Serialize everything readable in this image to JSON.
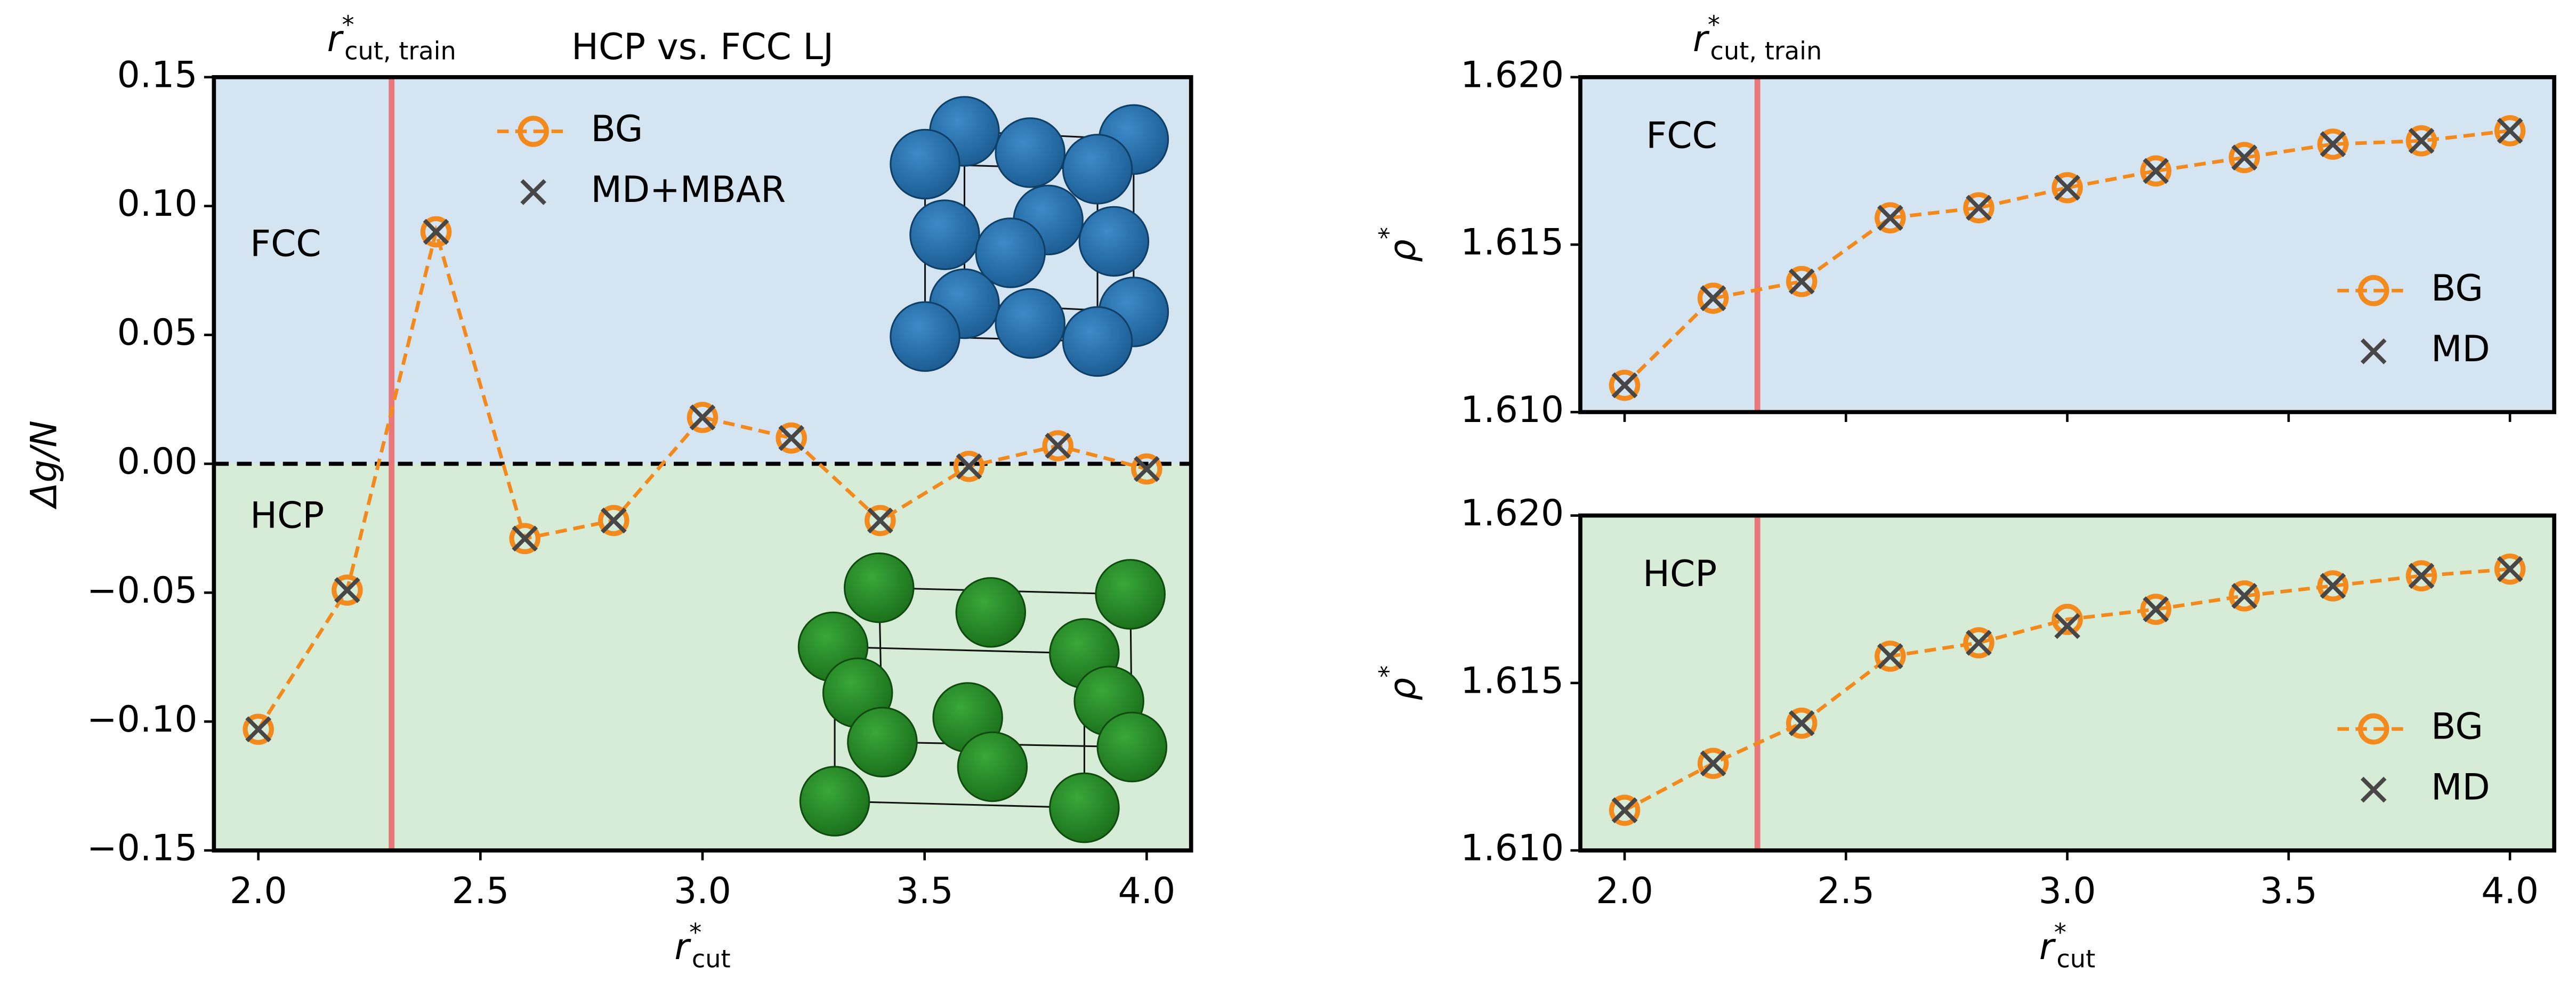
{
  "chart_data": [
    {
      "type": "line",
      "title": "HCP vs. FCC LJ",
      "xlabel": {
        "symbol": "r",
        "superscript": "*",
        "subscript": "cut"
      },
      "ylabel": "Δg/N",
      "x": [
        2.0,
        2.2,
        2.4,
        2.6,
        2.8,
        3.0,
        3.2,
        3.4,
        3.6,
        3.8,
        4.0
      ],
      "series": [
        {
          "name": "BG",
          "color": "#f28a1e",
          "marker": "open-circle",
          "line": "dashed",
          "values": [
            -0.103,
            -0.049,
            0.09,
            -0.029,
            -0.022,
            0.018,
            0.01,
            -0.022,
            -0.001,
            0.007,
            -0.002
          ]
        },
        {
          "name": "MD+MBAR",
          "color": "#474747",
          "marker": "x",
          "line": "none",
          "values": [
            -0.103,
            -0.049,
            0.09,
            -0.029,
            -0.022,
            0.018,
            0.01,
            -0.022,
            -0.001,
            0.007,
            -0.002
          ]
        }
      ],
      "xlim": [
        1.9,
        4.1
      ],
      "ylim": [
        -0.15,
        0.15
      ],
      "xticks": [
        {
          "value": 2,
          "label": "2.0"
        },
        {
          "value": 2.5,
          "label": "2.5"
        },
        {
          "value": 3,
          "label": "3.0"
        },
        {
          "value": 3.5,
          "label": "3.5"
        },
        {
          "value": 4,
          "label": "4.0"
        }
      ],
      "yticks": [
        {
          "value": -0.15,
          "label": "−0.15"
        },
        {
          "value": -0.1,
          "label": "−0.10"
        },
        {
          "value": -0.05,
          "label": "−0.05"
        },
        {
          "value": 0,
          "label": "0.00"
        },
        {
          "value": 0.05,
          "label": "0.05"
        },
        {
          "value": 0.1,
          "label": "0.10"
        },
        {
          "value": 0.15,
          "label": "0.15"
        }
      ],
      "regions": [
        {
          "label": "FCC",
          "color": "#d4e4f1",
          "ymin": 0,
          "ymax": 0.15
        },
        {
          "label": "HCP",
          "color": "#d6ecd6",
          "ymin": -0.15,
          "ymax": 0
        }
      ],
      "hline": 0,
      "vline": {
        "x": 2.3,
        "color": "#e8777a",
        "label": {
          "symbol": "r",
          "superscript": "*",
          "subscript": "cut, train"
        }
      },
      "legend": "upper center"
    },
    {
      "type": "line",
      "ylabel": {
        "symbol": "ρ",
        "superscript": "*"
      },
      "x": [
        2.0,
        2.2,
        2.4,
        2.6,
        2.8,
        3.0,
        3.2,
        3.4,
        3.6,
        3.8,
        4.0
      ],
      "series": [
        {
          "name": "BG",
          "color": "#f28a1e",
          "marker": "open-circle",
          "line": "dashed",
          "values": [
            1.6108,
            1.6134,
            1.6139,
            1.6158,
            1.6161,
            1.6167,
            1.6172,
            1.6176,
            1.618,
            1.6181,
            1.6184
          ]
        },
        {
          "name": "MD",
          "color": "#474747",
          "marker": "x",
          "line": "none",
          "values": [
            1.6108,
            1.6134,
            1.6139,
            1.6158,
            1.6161,
            1.6167,
            1.6172,
            1.6176,
            1.618,
            1.6181,
            1.6184
          ]
        }
      ],
      "xlim": [
        1.9,
        4.1
      ],
      "ylim": [
        1.61,
        1.62
      ],
      "xticks": [
        2,
        2.5,
        3,
        3.5,
        4
      ],
      "xticklabels": false,
      "yticks": [
        {
          "value": 1.61,
          "label": "1.610"
        },
        1.615,
        {
          "value": 1.62,
          "label": "1.620"
        }
      ],
      "regions": [
        {
          "label": "FCC",
          "color": "#d4e4f1",
          "ymin": 1.61,
          "ymax": 1.62
        }
      ],
      "vline": {
        "x": 2.3,
        "color": "#e8777a",
        "label": {
          "symbol": "r",
          "superscript": "*",
          "subscript": "cut, train"
        }
      },
      "legend": "lower right"
    },
    {
      "type": "line",
      "xlabel": {
        "symbol": "r",
        "superscript": "*",
        "subscript": "cut"
      },
      "ylabel": {
        "symbol": "ρ",
        "superscript": "*"
      },
      "x": [
        2.0,
        2.2,
        2.4,
        2.6,
        2.8,
        3.0,
        3.2,
        3.4,
        3.6,
        3.8,
        4.0
      ],
      "series": [
        {
          "name": "BG",
          "color": "#f28a1e",
          "marker": "open-circle",
          "line": "dashed",
          "values": [
            1.6112,
            1.6126,
            1.6138,
            1.6158,
            1.6162,
            1.6169,
            1.6172,
            1.6176,
            1.6179,
            1.6182,
            1.6184
          ]
        },
        {
          "name": "MD",
          "color": "#474747",
          "marker": "x",
          "line": "none",
          "values": [
            1.6112,
            1.6126,
            1.6138,
            1.6158,
            1.6162,
            1.6167,
            1.6172,
            1.6176,
            1.6179,
            1.6182,
            1.6184
          ]
        }
      ],
      "xlim": [
        1.9,
        4.1
      ],
      "ylim": [
        1.61,
        1.62
      ],
      "xticks": [
        {
          "value": 2,
          "label": "2.0"
        },
        {
          "value": 2.5,
          "label": "2.5"
        },
        {
          "value": 3,
          "label": "3.0"
        },
        {
          "value": 3.5,
          "label": "3.5"
        },
        {
          "value": 4,
          "label": "4.0"
        }
      ],
      "yticks": [
        {
          "value": 1.61,
          "label": "1.610"
        },
        1.615,
        {
          "value": 1.62,
          "label": "1.620"
        }
      ],
      "regions": [
        {
          "label": "HCP",
          "color": "#d6ecd6",
          "ymin": 1.61,
          "ymax": 1.62
        }
      ],
      "vline": {
        "x": 2.3,
        "color": "#e8777a"
      },
      "legend": "lower right"
    }
  ]
}
